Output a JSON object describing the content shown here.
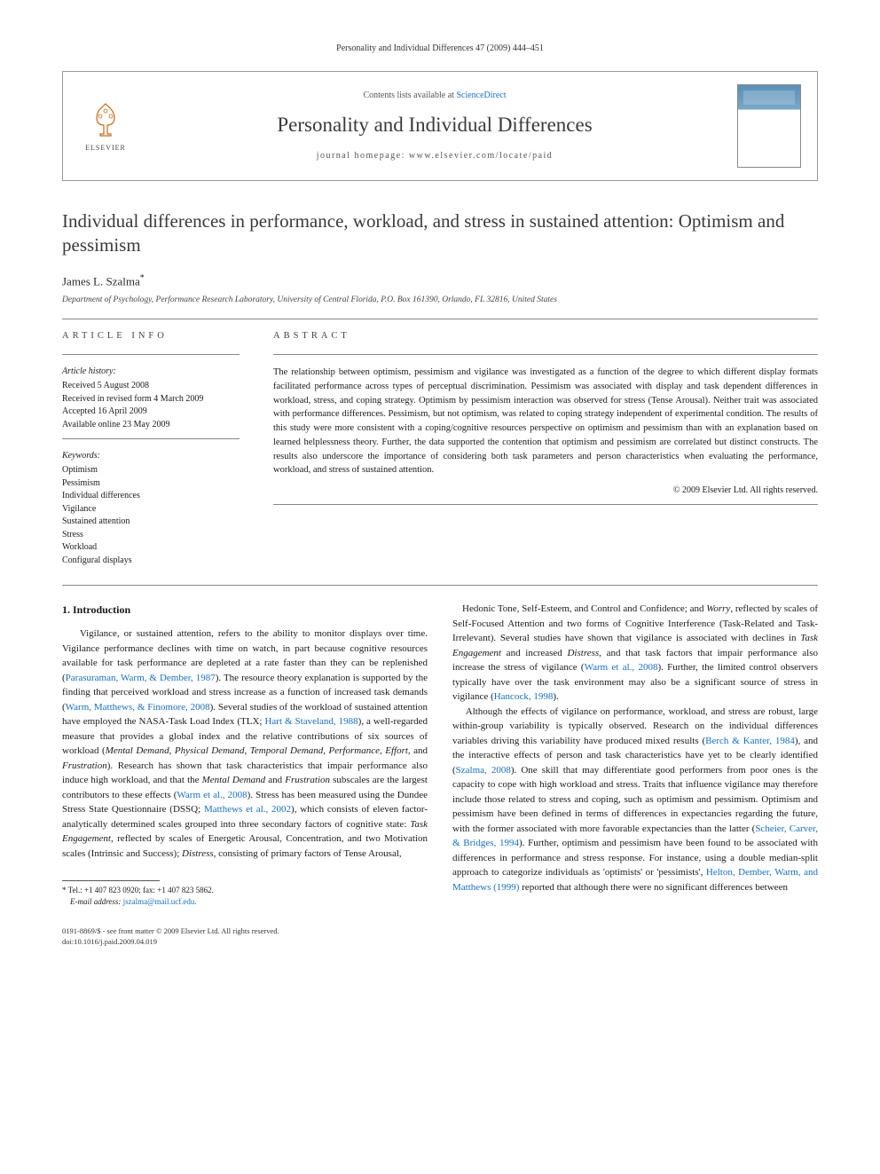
{
  "header_line": "Personality and Individual Differences 47 (2009) 444–451",
  "banner": {
    "contents_prefix": "Contents lists available at ",
    "contents_link": "ScienceDirect",
    "journal_name": "Personality and Individual Differences",
    "homepage_prefix": "journal homepage: ",
    "homepage_url": "www.elsevier.com/locate/paid",
    "elsevier_label": "ELSEVIER"
  },
  "article": {
    "title": "Individual differences in performance, workload, and stress in sustained attention: Optimism and pessimism",
    "author": "James L. Szalma",
    "author_marker": "*",
    "affiliation": "Department of Psychology, Performance Research Laboratory, University of Central Florida, P.O. Box 161390, Orlando, FL 32816, United States"
  },
  "info": {
    "head": "ARTICLE INFO",
    "history_label": "Article history:",
    "history": [
      "Received 5 August 2008",
      "Received in revised form 4 March 2009",
      "Accepted 16 April 2009",
      "Available online 23 May 2009"
    ],
    "keywords_label": "Keywords:",
    "keywords": [
      "Optimism",
      "Pessimism",
      "Individual differences",
      "Vigilance",
      "Sustained attention",
      "Stress",
      "Workload",
      "Configural displays"
    ]
  },
  "abstract": {
    "head": "ABSTRACT",
    "text": "The relationship between optimism, pessimism and vigilance was investigated as a function of the degree to which different display formats facilitated performance across types of perceptual discrimination. Pessimism was associated with display and task dependent differences in workload, stress, and coping strategy. Optimism by pessimism interaction was observed for stress (Tense Arousal). Neither trait was associated with performance differences. Pessimism, but not optimism, was related to coping strategy independent of experimental condition. The results of this study were more consistent with a coping/cognitive resources perspective on optimism and pessimism than with an explanation based on learned helplessness theory. Further, the data supported the contention that optimism and pessimism are correlated but distinct constructs. The results also underscore the importance of considering both task parameters and person characteristics when evaluating the performance, workload, and stress of sustained attention.",
    "copyright": "© 2009 Elsevier Ltd. All rights reserved."
  },
  "section1": {
    "head": "1. Introduction",
    "col1_html": "Vigilance, or sustained attention, refers to the ability to monitor displays over time. Vigilance performance declines with time on watch, in part because cognitive resources available for task performance are depleted at a rate faster than they can be replenished (<span class='ref-link'>Parasuraman, Warm, & Dember, 1987</span>). The resource theory explanation is supported by the finding that perceived workload and stress increase as a function of increased task demands (<span class='ref-link'>Warm, Matthews, & Finomore, 2008</span>). Several studies of the workload of sustained attention have employed the NASA-Task Load Index (TLX; <span class='ref-link'>Hart & Staveland, 1988</span>), a well-regarded measure that provides a global index and the relative contributions of six sources of workload (<span class='ital'>Mental Demand</span>, <span class='ital'>Physical Demand</span>, <span class='ital'>Temporal Demand</span>, <span class='ital'>Performance</span>, <span class='ital'>Effort</span>, and <span class='ital'>Frustration</span>). Research has shown that task characteristics that impair performance also induce high workload, and that the <span class='ital'>Mental Demand</span> and <span class='ital'>Frustration</span> subscales are the largest contributors to these effects (<span class='ref-link'>Warm et al., 2008</span>). Stress has been measured using the Dundee Stress State Questionnaire (DSSQ; <span class='ref-link'>Matthews et al., 2002</span>), which consists of eleven factor-analytically determined scales grouped into three secondary factors of cognitive state: <span class='ital'>Task Engagement</span>, reflected by scales of Energetic Arousal, Concentration, and two Motivation scales (Intrinsic and Success); <span class='ital'>Distress</span>, consisting of primary factors of Tense Arousal,",
    "col2_html": "Hedonic Tone, Self-Esteem, and Control and Confidence; and <span class='ital'>Worry</span>, reflected by scales of Self-Focused Attention and two forms of Cognitive Interference (Task-Related and Task-Irrelevant). Several studies have shown that vigilance is associated with declines in <span class='ital'>Task Engagement</span> and increased <span class='ital'>Distress</span>, and that task factors that impair performance also increase the stress of vigilance (<span class='ref-link'>Warm et al., 2008</span>). Further, the limited control observers typically have over the task environment may also be a significant source of stress in vigilance (<span class='ref-link'>Hancock, 1998</span>).<br>&nbsp;&nbsp;&nbsp;&nbsp;Although the effects of vigilance on performance, workload, and stress are robust, large within-group variability is typically observed. Research on the individual differences variables driving this variability have produced mixed results (<span class='ref-link'>Berch & Kanter, 1984</span>), and the interactive effects of person and task characteristics have yet to be clearly identified (<span class='ref-link'>Szalma, 2008</span>). One skill that may differentiate good performers from poor ones is the capacity to cope with high workload and stress. Traits that influence vigilance may therefore include those related to stress and coping, such as optimism and pessimism. Optimism and pessimism have been defined in terms of differences in expectancies regarding the future, with the former associated with more favorable expectancies than the latter (<span class='ref-link'>Scheier, Carver, & Bridges, 1994</span>). Further, optimism and pessimism have been found to be associated with differences in performance and stress response. For instance, using a double median-split approach to categorize individuals as 'optimists' or 'pessimists', <span class='ref-link'>Helton, Dember, Warm, and Matthews (1999)</span> reported that although there were no significant differences between"
  },
  "footnote": {
    "tel": "* Tel.: +1 407 823 0920; fax: +1 407 823 5862.",
    "email_label": "E-mail address:",
    "email": "jszalma@mail.ucf.edu."
  },
  "footer": {
    "line1": "0191-8869/$ - see front matter © 2009 Elsevier Ltd. All rights reserved.",
    "line2": "doi:10.1016/j.paid.2009.04.019"
  },
  "colors": {
    "link": "#1470c9",
    "text": "#1a1a1a",
    "rule": "#888888"
  }
}
